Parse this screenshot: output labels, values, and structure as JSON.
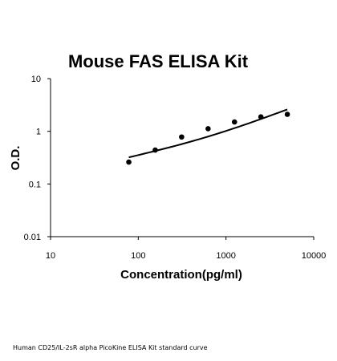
{
  "chart_data": {
    "type": "scatter",
    "title": "Mouse FAS ELISA Kit",
    "xlabel": "Concentration(pg/ml)",
    "ylabel": "O.D.",
    "x_scale": "log",
    "y_scale": "log",
    "xlim": [
      10,
      10000
    ],
    "ylim": [
      0.01,
      10
    ],
    "x_ticks": [
      "10",
      "100",
      "1000",
      "10000"
    ],
    "y_ticks": [
      "10",
      "1",
      "0.1",
      "0.01"
    ],
    "grid": false,
    "series": [
      {
        "x": [
          78,
          156,
          312,
          625,
          1250,
          2500,
          5000
        ],
        "y": [
          0.26,
          0.44,
          0.78,
          1.12,
          1.5,
          1.88,
          2.1
        ]
      }
    ],
    "fit_line": {
      "x": [
        78,
        5000
      ],
      "y": [
        0.32,
        2.6
      ]
    }
  },
  "caption": "Human CD25/IL-2sR alpha PicoKine ELISA Kit standard curve"
}
